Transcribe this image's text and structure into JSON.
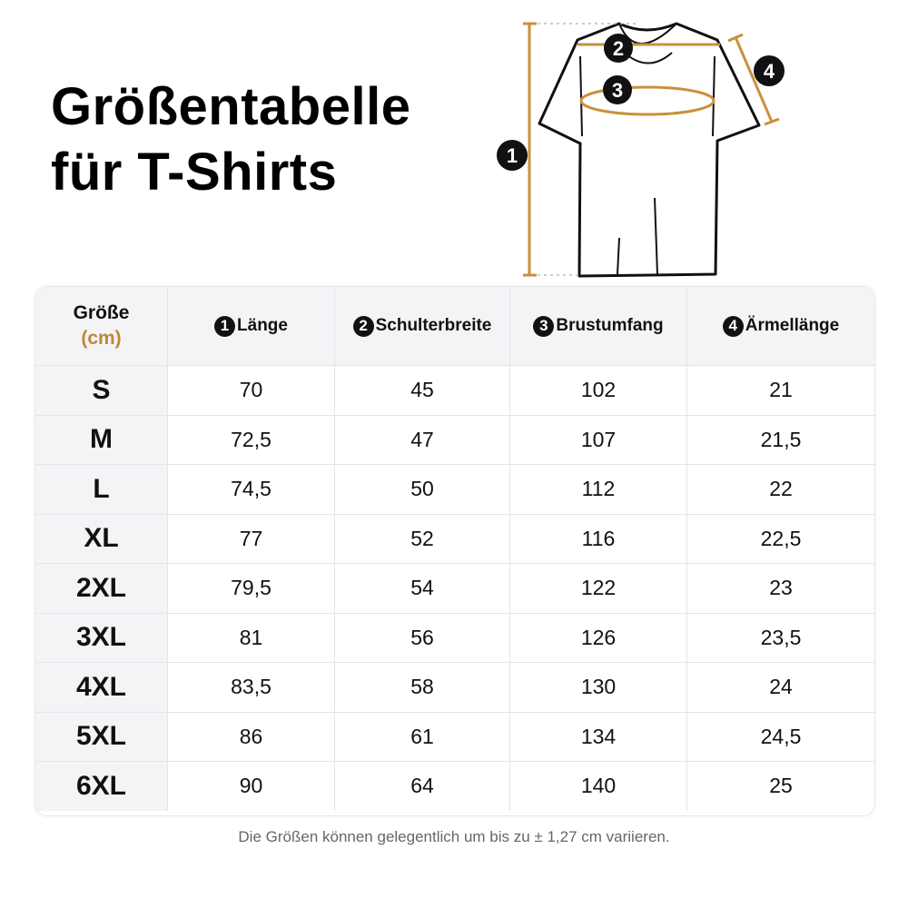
{
  "title": {
    "line1": "Größentabelle",
    "line2": "für T-Shirts"
  },
  "diagram": {
    "markers": [
      "1",
      "2",
      "3",
      "4"
    ],
    "accent_color": "#c8913a"
  },
  "table": {
    "header": {
      "size_label": "Größe",
      "size_unit": "(cm)",
      "columns": [
        {
          "num": "1",
          "label": "Länge"
        },
        {
          "num": "2",
          "label": "Schulterbreite"
        },
        {
          "num": "3",
          "label": "Brustumfang"
        },
        {
          "num": "4",
          "label": "Ärmellänge"
        }
      ]
    },
    "rows": [
      [
        "S",
        "70",
        "45",
        "102",
        "21"
      ],
      [
        "M",
        "72,5",
        "47",
        "107",
        "21,5"
      ],
      [
        "L",
        "74,5",
        "50",
        "112",
        "22"
      ],
      [
        "XL",
        "77",
        "52",
        "116",
        "22,5"
      ],
      [
        "2XL",
        "79,5",
        "54",
        "122",
        "23"
      ],
      [
        "3XL",
        "81",
        "56",
        "126",
        "23,5"
      ],
      [
        "4XL",
        "83,5",
        "58",
        "130",
        "24"
      ],
      [
        "5XL",
        "86",
        "61",
        "134",
        "24,5"
      ],
      [
        "6XL",
        "90",
        "64",
        "140",
        "25"
      ]
    ]
  },
  "note": "Die Größen können gelegentlich um bis zu ± 1,27 cm variieren."
}
